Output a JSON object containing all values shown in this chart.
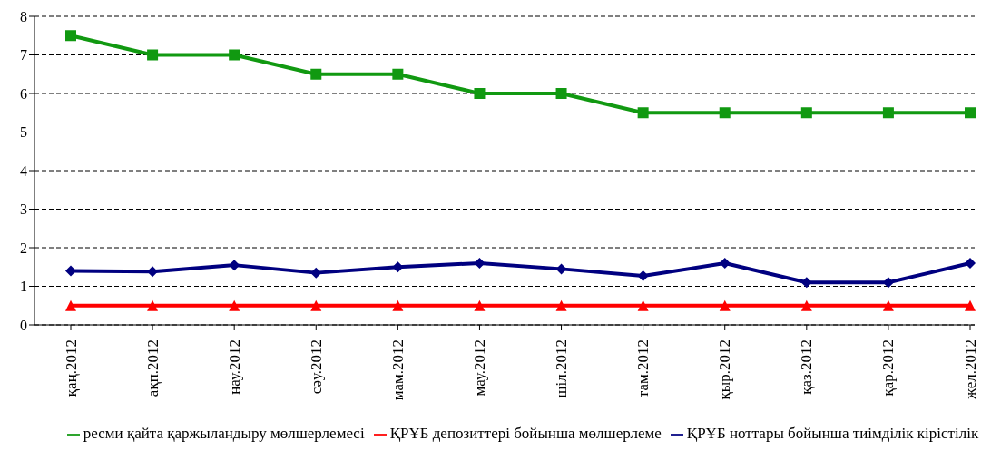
{
  "chart_data": {
    "type": "line",
    "categories": [
      "қаң.2012",
      "ақп.2012",
      "нау.2012",
      "сәу.2012",
      "мам.2012",
      "мау.2012",
      "шіл.2012",
      "там.2012",
      "қыр.2012",
      "қаз.2012",
      "қар.2012",
      "жел.2012"
    ],
    "series": [
      {
        "name": "ресми қайта қаржыландыру мөлшерлемесі",
        "color": "#119911",
        "marker": "square",
        "values": [
          7.5,
          7,
          7,
          6.5,
          6.5,
          6,
          6,
          5.5,
          5.5,
          5.5,
          5.5,
          5.5
        ]
      },
      {
        "name": "ҚРҰБ депозиттері бойынша  мөлшерлеме",
        "color": "#ff0000",
        "marker": "triangle",
        "values": [
          0.5,
          0.5,
          0.5,
          0.5,
          0.5,
          0.5,
          0.5,
          0.5,
          0.5,
          0.5,
          0.5,
          0.5
        ]
      },
      {
        "name": "ҚРҰБ ноттары бойынша тиімділік кірістілік",
        "color": "#000080",
        "marker": "diamond",
        "values": [
          1.4,
          1.38,
          1.55,
          1.35,
          1.5,
          1.6,
          1.45,
          1.27,
          1.6,
          1.1,
          1.1,
          1.6
        ]
      }
    ],
    "ylim": [
      0,
      8
    ],
    "yticks": [
      0,
      1,
      2,
      3,
      4,
      5,
      6,
      7,
      8
    ],
    "grid": "y",
    "line_style": "solid",
    "legend": "bottom"
  }
}
